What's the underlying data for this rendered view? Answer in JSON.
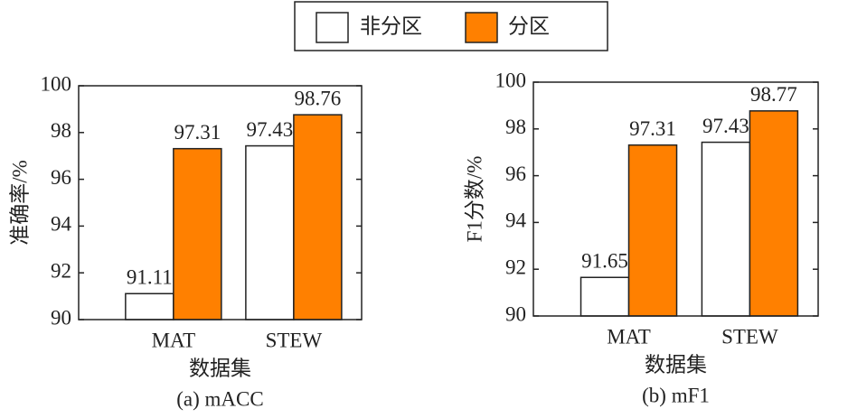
{
  "chart_data": [
    {
      "type": "bar",
      "caption": "(a) mACC",
      "ylabel": "准确率/%",
      "xlabel": "数据集",
      "categories": [
        "MAT",
        "STEW"
      ],
      "series": [
        {
          "name": "非分区",
          "color": "#ffffff",
          "values": [
            91.11,
            97.43
          ]
        },
        {
          "name": "分区",
          "color": "#ff8000",
          "values": [
            97.31,
            98.76
          ]
        }
      ],
      "ylim": [
        90,
        100
      ],
      "yticks": [
        90,
        92,
        94,
        96,
        98,
        100
      ]
    },
    {
      "type": "bar",
      "caption": "(b) mF1",
      "ylabel": "F1分数/%",
      "xlabel": "数据集",
      "categories": [
        "MAT",
        "STEW"
      ],
      "series": [
        {
          "name": "非分区",
          "color": "#ffffff",
          "values": [
            91.65,
            97.43
          ]
        },
        {
          "name": "分区",
          "color": "#ff8000",
          "values": [
            97.31,
            98.77
          ]
        }
      ],
      "ylim": [
        90,
        100
      ],
      "yticks": [
        90,
        92,
        94,
        96,
        98,
        100
      ]
    }
  ]
}
